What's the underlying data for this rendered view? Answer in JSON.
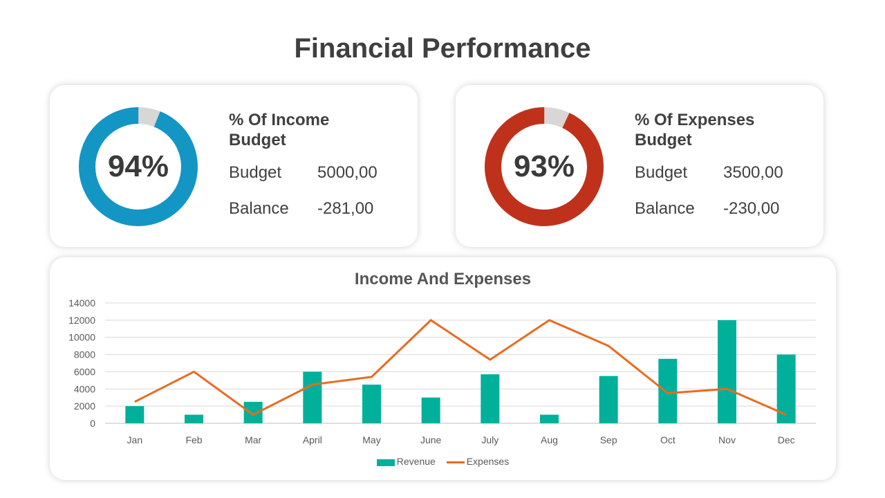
{
  "title": "Financial Performance",
  "colors": {
    "income_ring": "#1396c4",
    "expense_ring": "#c0311c",
    "ring_remainder": "#d9d6d6",
    "revenue_bar": "#00b09b",
    "expenses_line": "#ea6a1e"
  },
  "kpis": [
    {
      "percent": 94,
      "percent_label": "94%",
      "title": "% Of Income Budget",
      "budget_label": "Budget",
      "budget_value": "5000,00",
      "balance_label": "Balance",
      "balance_value": "-281,00"
    },
    {
      "percent": 93,
      "percent_label": "93%",
      "title": "% Of Expenses Budget",
      "budget_label": "Budget",
      "budget_value": "3500,00",
      "balance_label": "Balance",
      "balance_value": "-230,00"
    }
  ],
  "chart_data": {
    "type": "bar",
    "title": "Income And Expenses",
    "categories": [
      "Jan",
      "Feb",
      "Mar",
      "April",
      "May",
      "June",
      "July",
      "Aug",
      "Sep",
      "Oct",
      "Nov",
      "Dec"
    ],
    "series": [
      {
        "name": "Revenue",
        "type": "bar",
        "values": [
          2000,
          1000,
          2500,
          6000,
          4500,
          3000,
          5700,
          1000,
          5500,
          7500,
          12000,
          8000
        ]
      },
      {
        "name": "Expenses",
        "type": "line",
        "values": [
          2500,
          6000,
          1000,
          4500,
          5400,
          12000,
          7400,
          12000,
          9000,
          3500,
          4000,
          1000
        ]
      }
    ],
    "ylim": [
      0,
      14000
    ],
    "yticks": [
      "0",
      "2000",
      "4000",
      "6000",
      "8000",
      "10000",
      "12000",
      "14000"
    ],
    "xlabel": "",
    "ylabel": "",
    "grid": true,
    "legend": "bottom"
  }
}
